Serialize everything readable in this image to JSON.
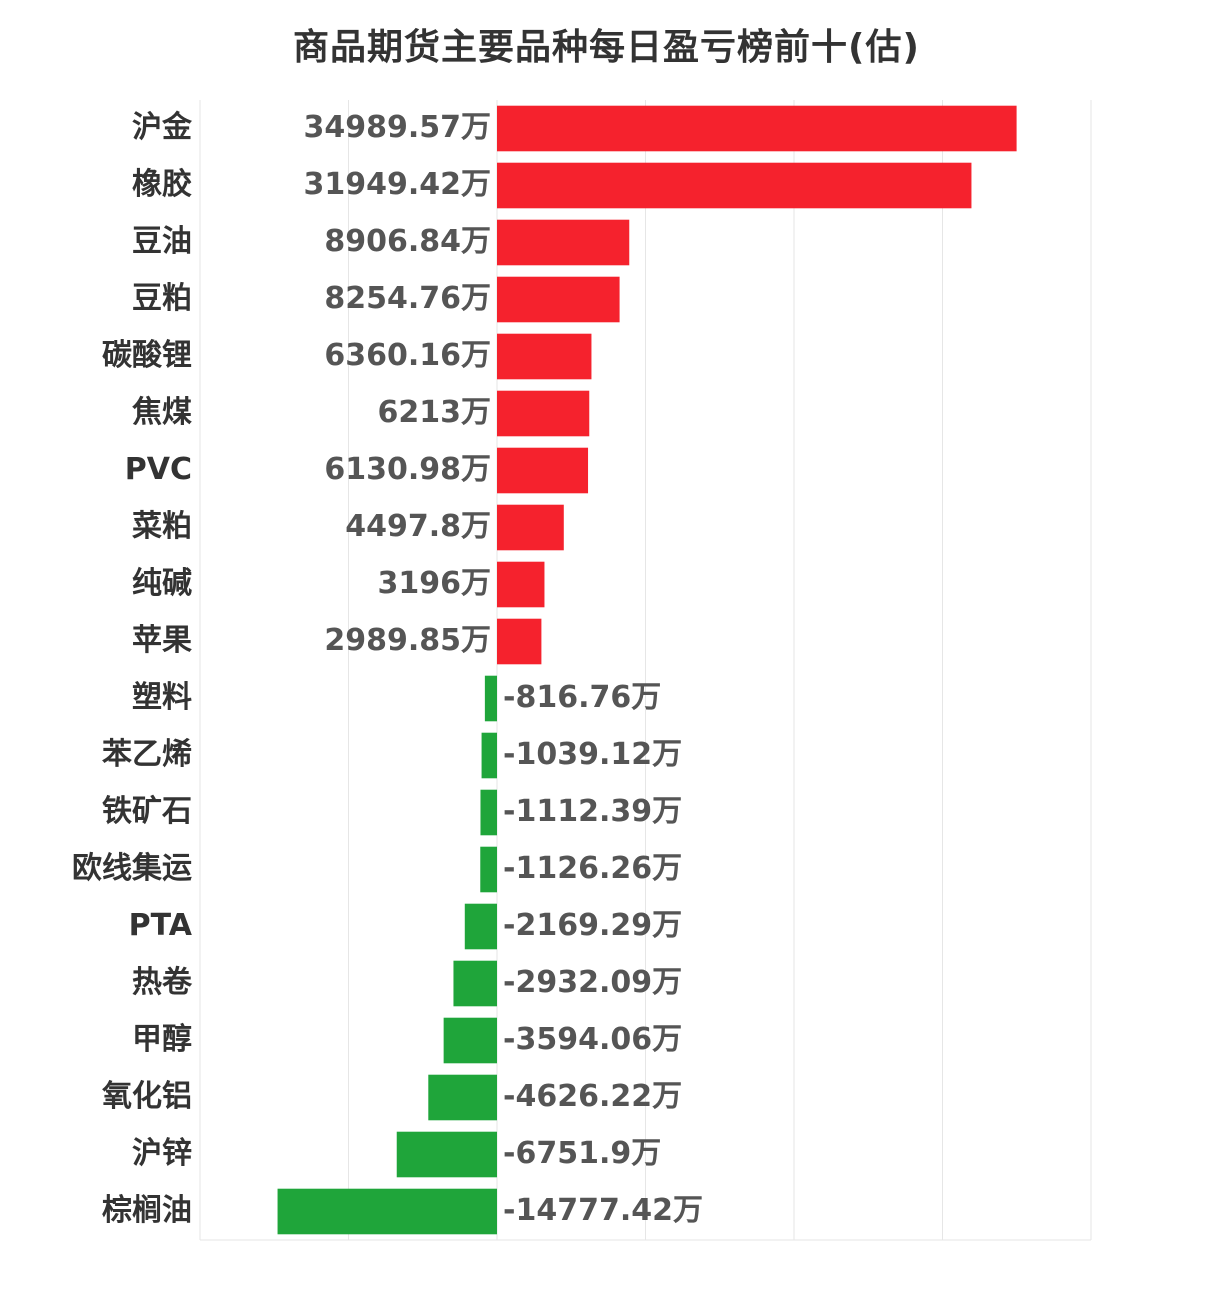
{
  "chart_data": {
    "type": "bar",
    "orientation": "horizontal",
    "title": "商品期货主要品种每日盈亏榜前十(估)",
    "unit": "万",
    "xlim": [
      -20000,
      40000
    ],
    "grid": true,
    "colors": {
      "positive": "#f5222d",
      "negative": "#1fa53a"
    },
    "categories": [
      "沪金",
      "橡胶",
      "豆油",
      "豆粕",
      "碳酸锂",
      "焦煤",
      "PVC",
      "菜粕",
      "纯碱",
      "苹果",
      "塑料",
      "苯乙烯",
      "铁矿石",
      "欧线集运",
      "PTA",
      "热卷",
      "甲醇",
      "氧化铝",
      "沪锌",
      "棕榈油"
    ],
    "values": [
      34989.57,
      31949.42,
      8906.84,
      8254.76,
      6360.16,
      6213,
      6130.98,
      4497.8,
      3196,
      2989.85,
      -816.76,
      -1039.12,
      -1112.39,
      -1126.26,
      -2169.29,
      -2932.09,
      -3594.06,
      -4626.22,
      -6751.9,
      -14777.42
    ],
    "value_labels": [
      "34989.57万",
      "31949.42万",
      "8906.84万",
      "8254.76万",
      "6360.16万",
      "6213万",
      "6130.98万",
      "4497.8万",
      "3196万",
      "2989.85万",
      "-816.76万",
      "-1039.12万",
      "-1112.39万",
      "-1126.26万",
      "-2169.29万",
      "-2932.09万",
      "-3594.06万",
      "-4626.22万",
      "-6751.9万",
      "-14777.42万"
    ]
  }
}
